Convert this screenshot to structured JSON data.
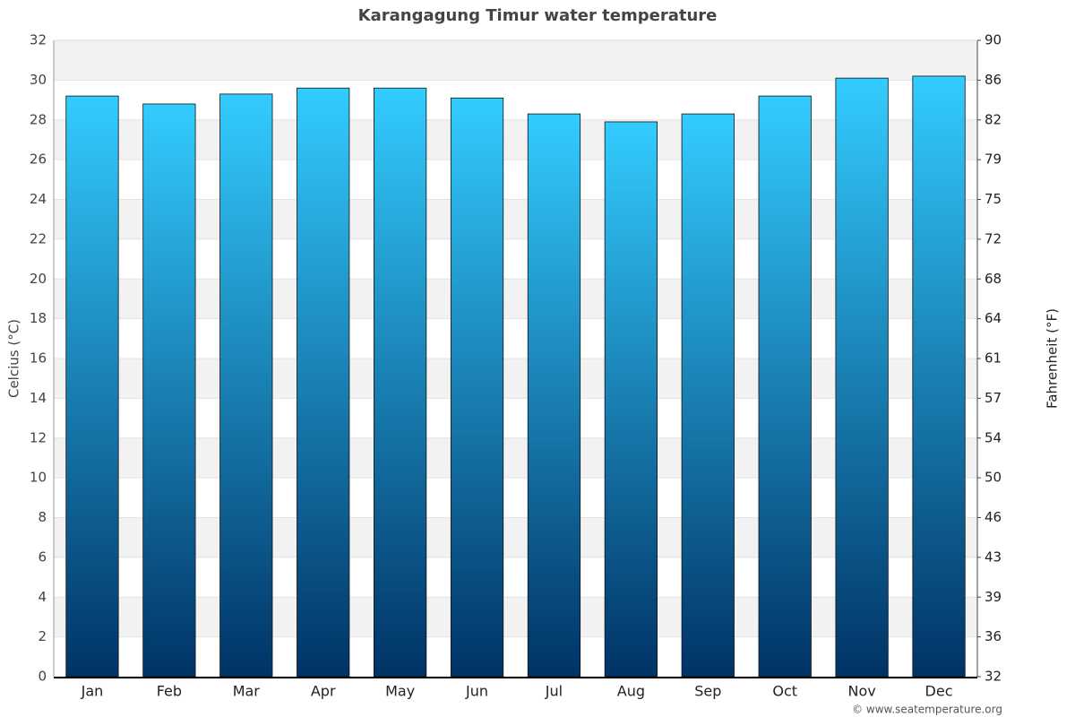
{
  "chart_data": {
    "type": "bar",
    "title": "Karangagung Timur water temperature",
    "categories": [
      "Jan",
      "Feb",
      "Mar",
      "Apr",
      "May",
      "Jun",
      "Jul",
      "Aug",
      "Sep",
      "Oct",
      "Nov",
      "Dec"
    ],
    "values": [
      29.2,
      28.8,
      29.3,
      29.6,
      29.6,
      29.1,
      28.3,
      27.9,
      28.3,
      29.2,
      30.1,
      30.2
    ],
    "ylim": [
      0,
      32
    ],
    "yticks": [
      0,
      2,
      4,
      6,
      8,
      10,
      12,
      14,
      16,
      18,
      20,
      22,
      24,
      26,
      28,
      30,
      32
    ],
    "y2lim": [
      32,
      89.6
    ],
    "y2ticks": [
      32,
      {
        "value": 35.6,
        "label": "36"
      },
      {
        "value": 39.2,
        "label": "39"
      },
      {
        "value": 42.8,
        "label": "43"
      },
      {
        "value": 46.4,
        "label": "46"
      },
      50,
      {
        "value": 53.6,
        "label": "54"
      },
      {
        "value": 57.2,
        "label": "57"
      },
      {
        "value": 60.8,
        "label": "61"
      },
      {
        "value": 64.4,
        "label": "64"
      },
      68,
      {
        "value": 71.6,
        "label": "72"
      },
      {
        "value": 75.2,
        "label": "75"
      },
      {
        "value": 78.8,
        "label": "79"
      },
      {
        "value": 82.4,
        "label": "82"
      },
      86,
      {
        "value": 89.6,
        "label": "90"
      }
    ],
    "ylabel": "Celcius (°C)",
    "y2label": "Fahrenheit (°F)",
    "grid": true,
    "credit": "© www.seatemperature.org"
  }
}
